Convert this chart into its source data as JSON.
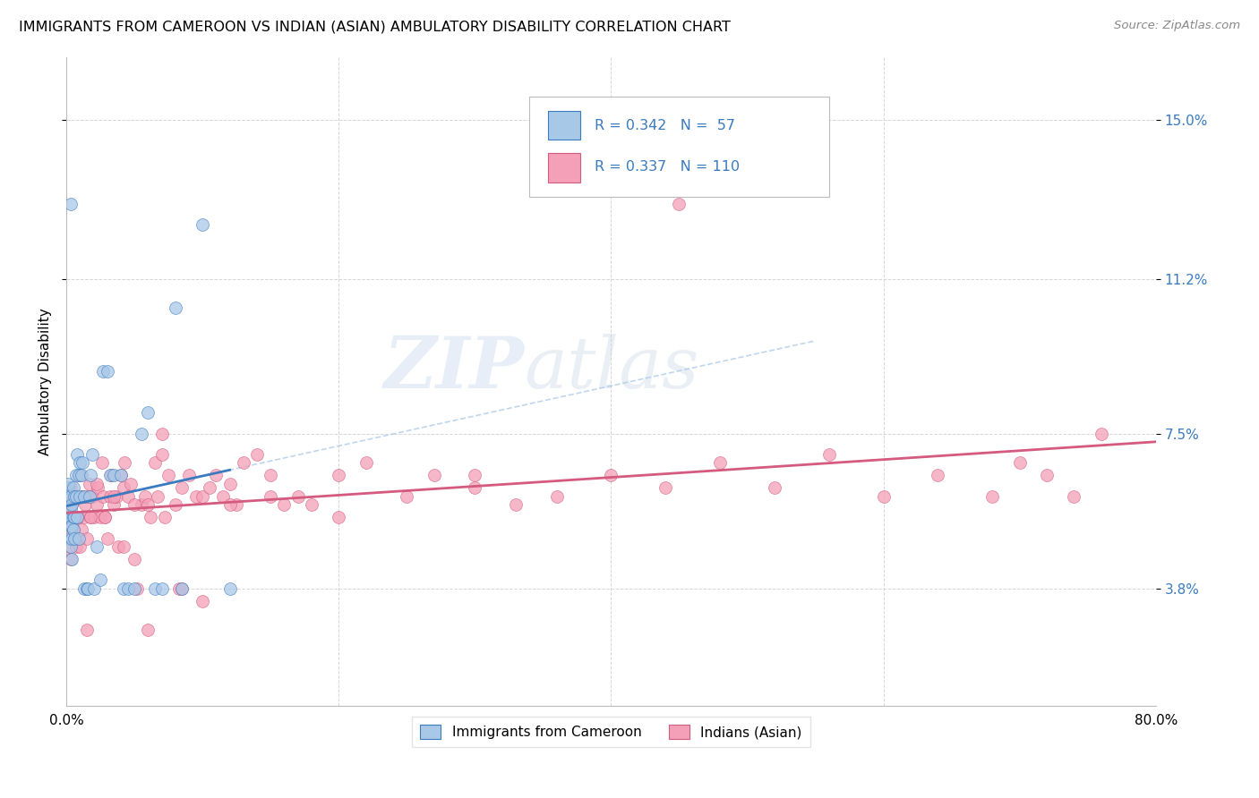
{
  "title": "IMMIGRANTS FROM CAMEROON VS INDIAN (ASIAN) AMBULATORY DISABILITY CORRELATION CHART",
  "source": "Source: ZipAtlas.com",
  "ylabel": "Ambulatory Disability",
  "ytick_labels": [
    "3.8%",
    "7.5%",
    "11.2%",
    "15.0%"
  ],
  "ytick_values": [
    0.038,
    0.075,
    0.112,
    0.15
  ],
  "xlim": [
    0.0,
    0.8
  ],
  "ylim": [
    0.01,
    0.165
  ],
  "legend_R1": "0.342",
  "legend_N1": "57",
  "legend_R2": "0.337",
  "legend_N2": "110",
  "legend_label1": "Immigrants from Cameroon",
  "legend_label2": "Indians (Asian)",
  "color_blue": "#a8c8e8",
  "color_pink": "#f4a0b8",
  "color_blue_line": "#3a7abf",
  "color_pink_line": "#d45a80",
  "color_blue_dashed": "#b0cce8",
  "background_color": "#ffffff",
  "grid_color": "#cccccc",
  "watermark_zip": "ZIP",
  "watermark_atlas": "atlas",
  "cameroon_x": [
    0.001,
    0.001,
    0.001,
    0.001,
    0.002,
    0.002,
    0.003,
    0.003,
    0.003,
    0.003,
    0.004,
    0.004,
    0.004,
    0.004,
    0.005,
    0.005,
    0.005,
    0.006,
    0.006,
    0.006,
    0.007,
    0.007,
    0.008,
    0.008,
    0.009,
    0.009,
    0.01,
    0.01,
    0.011,
    0.012,
    0.013,
    0.013,
    0.015,
    0.016,
    0.017,
    0.018,
    0.019,
    0.02,
    0.022,
    0.025,
    0.027,
    0.03,
    0.032,
    0.035,
    0.04,
    0.042,
    0.045,
    0.05,
    0.055,
    0.06,
    0.065,
    0.07,
    0.08,
    0.085,
    0.1,
    0.12,
    0.003
  ],
  "cameroon_y": [
    0.055,
    0.06,
    0.062,
    0.063,
    0.05,
    0.055,
    0.048,
    0.053,
    0.057,
    0.06,
    0.045,
    0.05,
    0.053,
    0.058,
    0.052,
    0.055,
    0.062,
    0.05,
    0.055,
    0.06,
    0.06,
    0.065,
    0.055,
    0.07,
    0.05,
    0.065,
    0.06,
    0.068,
    0.065,
    0.068,
    0.038,
    0.06,
    0.038,
    0.038,
    0.06,
    0.065,
    0.07,
    0.038,
    0.048,
    0.04,
    0.09,
    0.09,
    0.065,
    0.065,
    0.065,
    0.038,
    0.038,
    0.038,
    0.075,
    0.08,
    0.038,
    0.038,
    0.105,
    0.038,
    0.125,
    0.038,
    0.13
  ],
  "indian_x": [
    0.001,
    0.001,
    0.002,
    0.002,
    0.003,
    0.003,
    0.004,
    0.005,
    0.005,
    0.006,
    0.007,
    0.008,
    0.009,
    0.01,
    0.011,
    0.012,
    0.013,
    0.014,
    0.015,
    0.016,
    0.017,
    0.018,
    0.019,
    0.02,
    0.022,
    0.023,
    0.025,
    0.026,
    0.027,
    0.028,
    0.03,
    0.032,
    0.033,
    0.035,
    0.037,
    0.038,
    0.04,
    0.042,
    0.043,
    0.045,
    0.047,
    0.05,
    0.052,
    0.055,
    0.058,
    0.06,
    0.062,
    0.065,
    0.067,
    0.07,
    0.072,
    0.075,
    0.08,
    0.083,
    0.085,
    0.09,
    0.095,
    0.1,
    0.105,
    0.11,
    0.115,
    0.12,
    0.125,
    0.13,
    0.14,
    0.15,
    0.16,
    0.17,
    0.18,
    0.2,
    0.22,
    0.25,
    0.27,
    0.3,
    0.33,
    0.36,
    0.4,
    0.44,
    0.48,
    0.52,
    0.56,
    0.6,
    0.64,
    0.68,
    0.7,
    0.72,
    0.74,
    0.76,
    0.003,
    0.004,
    0.006,
    0.008,
    0.01,
    0.012,
    0.015,
    0.018,
    0.022,
    0.028,
    0.035,
    0.042,
    0.05,
    0.06,
    0.07,
    0.085,
    0.1,
    0.12,
    0.15,
    0.2,
    0.3,
    0.45
  ],
  "indian_y": [
    0.055,
    0.06,
    0.048,
    0.058,
    0.045,
    0.062,
    0.05,
    0.052,
    0.06,
    0.055,
    0.048,
    0.05,
    0.055,
    0.048,
    0.052,
    0.06,
    0.055,
    0.058,
    0.05,
    0.06,
    0.063,
    0.055,
    0.06,
    0.055,
    0.058,
    0.062,
    0.055,
    0.068,
    0.06,
    0.055,
    0.05,
    0.06,
    0.065,
    0.058,
    0.06,
    0.048,
    0.065,
    0.062,
    0.068,
    0.06,
    0.063,
    0.045,
    0.038,
    0.058,
    0.06,
    0.058,
    0.055,
    0.068,
    0.06,
    0.075,
    0.055,
    0.065,
    0.058,
    0.038,
    0.062,
    0.065,
    0.06,
    0.06,
    0.062,
    0.065,
    0.06,
    0.063,
    0.058,
    0.068,
    0.07,
    0.065,
    0.058,
    0.06,
    0.058,
    0.065,
    0.068,
    0.06,
    0.065,
    0.065,
    0.058,
    0.06,
    0.065,
    0.062,
    0.068,
    0.062,
    0.07,
    0.06,
    0.065,
    0.06,
    0.068,
    0.065,
    0.06,
    0.075,
    0.052,
    0.058,
    0.06,
    0.055,
    0.065,
    0.06,
    0.028,
    0.055,
    0.063,
    0.055,
    0.06,
    0.048,
    0.058,
    0.028,
    0.07,
    0.038,
    0.035,
    0.058,
    0.06,
    0.055,
    0.062,
    0.13
  ]
}
